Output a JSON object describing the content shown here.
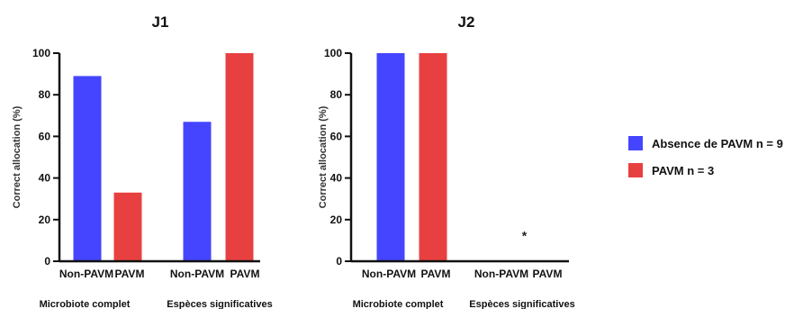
{
  "colors": {
    "non_pavm": "#4545ff",
    "pavm": "#e84040",
    "axis": "#111111"
  },
  "legend": {
    "items": [
      {
        "label": "Absence de PAVM n = 9",
        "color": "#4545ff"
      },
      {
        "label": "PAVM n = 3",
        "color": "#e84040"
      }
    ]
  },
  "chart_data": [
    {
      "type": "bar",
      "title": "J1",
      "ylabel": "Correct allocation (%)",
      "ylim": [
        0,
        100
      ],
      "yticks": [
        0,
        20,
        40,
        60,
        80,
        100
      ],
      "groups": [
        {
          "label": "Microbiote complet",
          "categories": [
            "Non-PAVM",
            "PAVM"
          ],
          "values": [
            89,
            33
          ]
        },
        {
          "label": "Espèces significatives",
          "categories": [
            "Non-PAVM",
            "PAVM"
          ],
          "values": [
            67,
            100
          ]
        }
      ],
      "annotations": []
    },
    {
      "type": "bar",
      "title": "J2",
      "ylabel": "Correct allocation (%)",
      "ylim": [
        0,
        100
      ],
      "yticks": [
        0,
        20,
        40,
        60,
        80,
        100
      ],
      "groups": [
        {
          "label": "Microbiote complet",
          "categories": [
            "Non-PAVM",
            "PAVM"
          ],
          "values": [
            100,
            100
          ]
        },
        {
          "label": "Espèces significatives",
          "categories": [
            "Non-PAVM",
            "PAVM"
          ],
          "values": [
            0,
            0
          ]
        }
      ],
      "annotations": [
        {
          "text": "*",
          "x": "Non-PAVM-PAVM (Espèces significatives)",
          "y": 12
        }
      ]
    }
  ]
}
